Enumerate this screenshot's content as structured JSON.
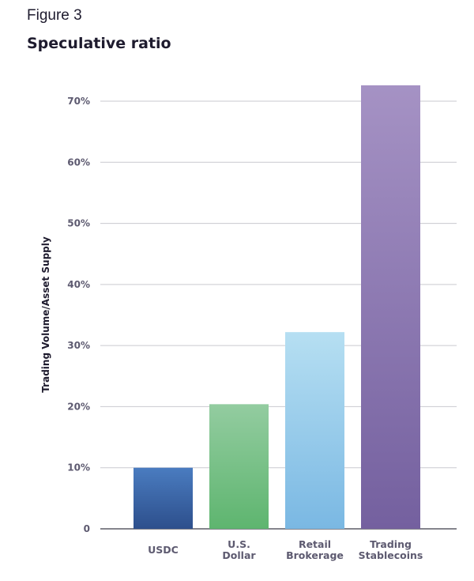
{
  "figure_label": "Figure 3",
  "chart_data": {
    "type": "bar",
    "title": "Speculative ratio",
    "xlabel": "",
    "ylabel": "Trading Volume/Asset Supply",
    "categories": [
      [
        "USDC"
      ],
      [
        "U.S.",
        "Dollar"
      ],
      [
        "Retail",
        "Brokerage"
      ],
      [
        "Trading",
        "Stablecoins"
      ]
    ],
    "values": [
      10,
      20.4,
      32.2,
      72.6
    ],
    "unit": "%",
    "ylim": [
      0,
      70
    ],
    "yticks": [
      0,
      10,
      20,
      30,
      40,
      50,
      60,
      70
    ],
    "ytick_labels": [
      "0",
      "10%",
      "20%",
      "30%",
      "40%",
      "50%",
      "60%",
      "70%"
    ],
    "grid": true,
    "colors": [
      [
        "#4a7cc0",
        "#2d4f8c"
      ],
      [
        "#93cca0",
        "#5eb56f"
      ],
      [
        "#b6dff2",
        "#7ab8e3"
      ],
      [
        "#a592c4",
        "#74609f"
      ]
    ]
  }
}
